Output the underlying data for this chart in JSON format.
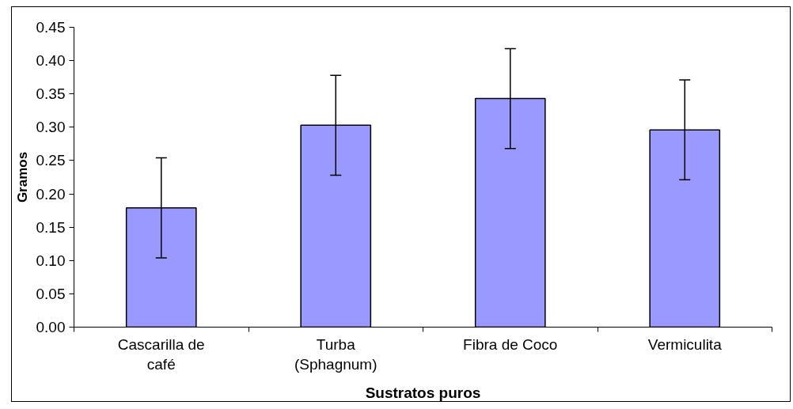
{
  "chart_data": {
    "type": "bar",
    "xlabel": "Sustratos puros",
    "ylabel": "Gramos",
    "categories": [
      "Cascarilla de café",
      "Turba (Sphagnum)",
      "Fibra de Coco",
      "Vermiculita"
    ],
    "values": [
      0.179,
      0.303,
      0.343,
      0.296
    ],
    "errors": [
      0.075,
      0.075,
      0.075,
      0.075
    ],
    "color": "#9999ff",
    "ylim": [
      0,
      0.45
    ],
    "yticks": [
      {
        "value": 0,
        "label": "0.00"
      },
      {
        "value": 0.05,
        "label": "0.05"
      },
      {
        "value": 0.1,
        "label": "0.10"
      },
      {
        "value": 0.15,
        "label": "0.15"
      },
      {
        "value": 0.2,
        "label": "0.20"
      },
      {
        "value": 0.25,
        "label": "0.25"
      },
      {
        "value": 0.3,
        "label": "0.30"
      },
      {
        "value": 0.35,
        "label": "0.35"
      },
      {
        "value": 0.4,
        "label": "0.40"
      },
      {
        "value": 0.45,
        "label": "0.45"
      }
    ],
    "grid": false
  }
}
